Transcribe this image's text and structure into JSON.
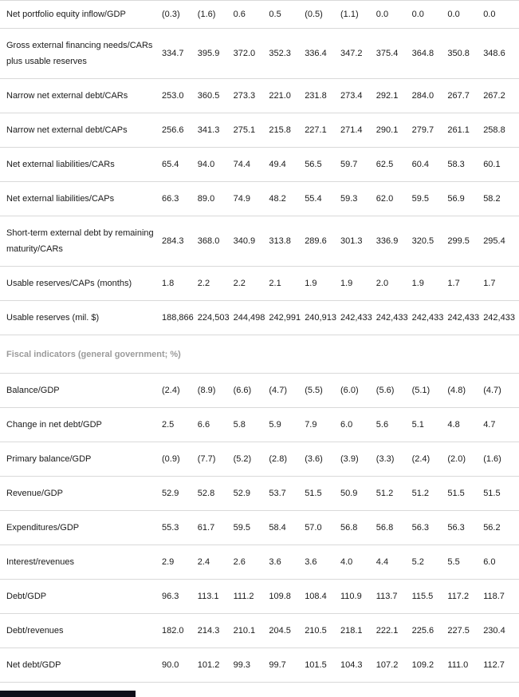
{
  "colors": {
    "text": "#1a1a1a",
    "section_header": "#9b9b9b",
    "row_border": "#d9d9d9",
    "dark_bar": "#0e0e18",
    "background": "#ffffff"
  },
  "table": {
    "num_value_columns": 10,
    "rows": [
      {
        "type": "data",
        "label": "Net portfolio equity inflow/GDP",
        "values": [
          "(0.3)",
          "(1.6)",
          "0.6",
          "0.5",
          "(0.5)",
          "(1.1)",
          "0.0",
          "0.0",
          "0.0",
          "0.0"
        ]
      },
      {
        "type": "data",
        "label": "Gross external financing needs/CARs plus usable reserves",
        "values": [
          "334.7",
          "395.9",
          "372.0",
          "352.3",
          "336.4",
          "347.2",
          "375.4",
          "364.8",
          "350.8",
          "348.6"
        ]
      },
      {
        "type": "data",
        "label": "Narrow net external debt/CARs",
        "values": [
          "253.0",
          "360.5",
          "273.3",
          "221.0",
          "231.8",
          "273.4",
          "292.1",
          "284.0",
          "267.7",
          "267.2"
        ]
      },
      {
        "type": "data",
        "label": "Narrow net external debt/CAPs",
        "values": [
          "256.6",
          "341.3",
          "275.1",
          "215.8",
          "227.1",
          "271.4",
          "290.1",
          "279.7",
          "261.1",
          "258.8"
        ]
      },
      {
        "type": "data",
        "label": "Net external liabilities/CARs",
        "values": [
          "65.4",
          "94.0",
          "74.4",
          "49.4",
          "56.5",
          "59.7",
          "62.5",
          "60.4",
          "58.3",
          "60.1"
        ]
      },
      {
        "type": "data",
        "label": "Net external liabilities/CAPs",
        "values": [
          "66.3",
          "89.0",
          "74.9",
          "48.2",
          "55.4",
          "59.3",
          "62.0",
          "59.5",
          "56.9",
          "58.2"
        ]
      },
      {
        "type": "data",
        "label": "Short-term external debt by remaining maturity/CARs",
        "values": [
          "284.3",
          "368.0",
          "340.9",
          "313.8",
          "289.6",
          "301.3",
          "336.9",
          "320.5",
          "299.5",
          "295.4"
        ]
      },
      {
        "type": "data",
        "label": "Usable reserves/CAPs (months)",
        "values": [
          "1.8",
          "2.2",
          "2.2",
          "2.1",
          "1.9",
          "1.9",
          "2.0",
          "1.9",
          "1.7",
          "1.7"
        ]
      },
      {
        "type": "data",
        "label": "Usable reserves (mil. $)",
        "values": [
          "188,866",
          "224,503",
          "244,498",
          "242,991",
          "240,913",
          "242,433",
          "242,433",
          "242,433",
          "242,433",
          "242,433"
        ]
      },
      {
        "type": "section",
        "label": "Fiscal indicators (general government; %)"
      },
      {
        "type": "data",
        "label": "Balance/GDP",
        "values": [
          "(2.4)",
          "(8.9)",
          "(6.6)",
          "(4.7)",
          "(5.5)",
          "(6.0)",
          "(5.6)",
          "(5.1)",
          "(4.8)",
          "(4.7)"
        ]
      },
      {
        "type": "data",
        "label": "Change in net debt/GDP",
        "values": [
          "2.5",
          "6.6",
          "5.8",
          "5.9",
          "7.9",
          "6.0",
          "5.6",
          "5.1",
          "4.8",
          "4.7"
        ]
      },
      {
        "type": "data",
        "label": "Primary balance/GDP",
        "values": [
          "(0.9)",
          "(7.7)",
          "(5.2)",
          "(2.8)",
          "(3.6)",
          "(3.9)",
          "(3.3)",
          "(2.4)",
          "(2.0)",
          "(1.6)"
        ]
      },
      {
        "type": "data",
        "label": "Revenue/GDP",
        "values": [
          "52.9",
          "52.8",
          "52.9",
          "53.7",
          "51.5",
          "50.9",
          "51.2",
          "51.2",
          "51.5",
          "51.5"
        ]
      },
      {
        "type": "data",
        "label": "Expenditures/GDP",
        "values": [
          "55.3",
          "61.7",
          "59.5",
          "58.4",
          "57.0",
          "56.8",
          "56.8",
          "56.3",
          "56.3",
          "56.2"
        ]
      },
      {
        "type": "data",
        "label": "Interest/revenues",
        "values": [
          "2.9",
          "2.4",
          "2.6",
          "3.6",
          "3.6",
          "4.0",
          "4.4",
          "5.2",
          "5.5",
          "6.0"
        ]
      },
      {
        "type": "data",
        "label": "Debt/GDP",
        "values": [
          "96.3",
          "113.1",
          "111.2",
          "109.8",
          "108.4",
          "110.9",
          "113.7",
          "115.5",
          "117.2",
          "118.7"
        ]
      },
      {
        "type": "data",
        "label": "Debt/revenues",
        "values": [
          "182.0",
          "214.3",
          "210.1",
          "204.5",
          "210.5",
          "218.1",
          "222.1",
          "225.6",
          "227.5",
          "230.4"
        ]
      },
      {
        "type": "data",
        "label": "Net debt/GDP",
        "values": [
          "90.0",
          "101.2",
          "99.3",
          "99.7",
          "101.5",
          "104.3",
          "107.2",
          "109.2",
          "111.0",
          "112.7"
        ]
      }
    ]
  }
}
